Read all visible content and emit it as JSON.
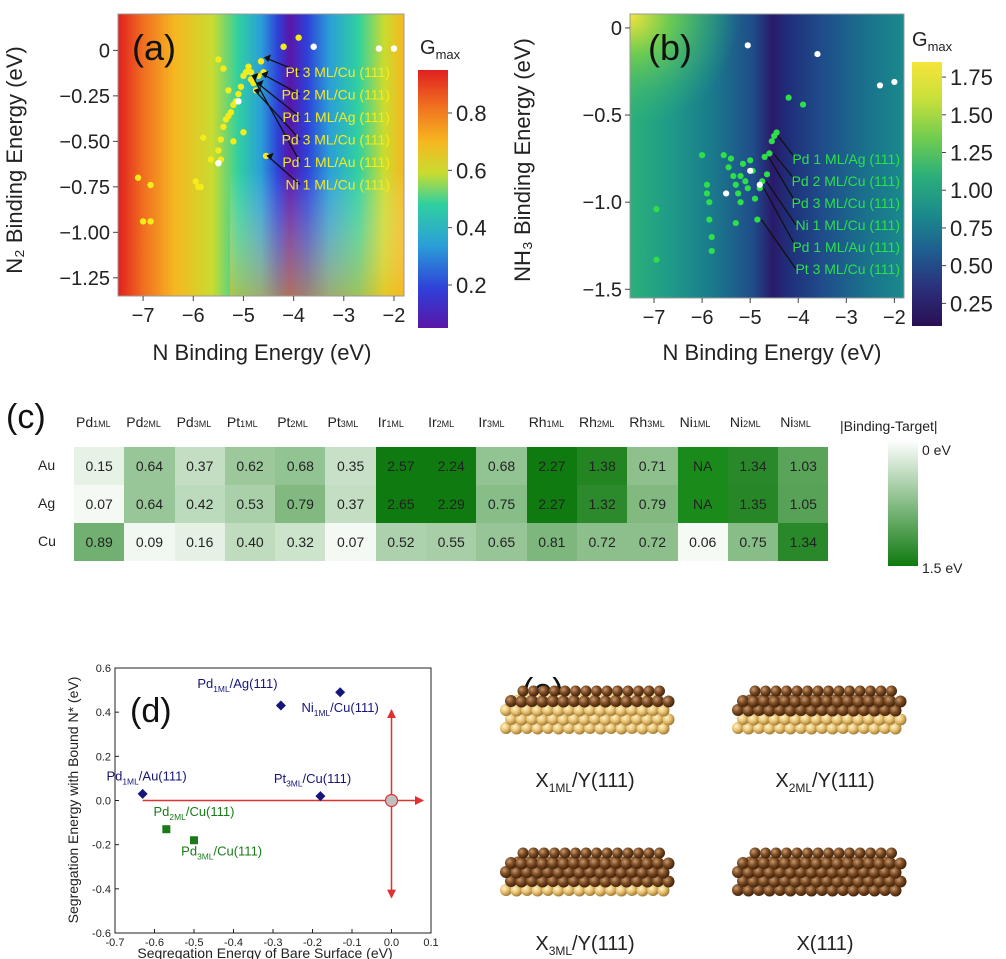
{
  "panel_a": {
    "label": "(a)",
    "xlabel": "N Binding Energy (eV)",
    "ylabel": "N₂ Binding Energy (eV)",
    "colorbar_title": "Gmax",
    "colorbar_ticks": [
      "0.8",
      "0.6",
      "0.4",
      "0.2"
    ],
    "annotations": [
      "Pt 3 ML/Cu (111)",
      "Pd 2 ML/Cu (111)",
      "Pd 1 ML/Ag (111)",
      "Pd 3 ML/Cu (111)",
      "Pd 1 ML/Au (111)",
      "Ni 1 ML/Cu (111)"
    ]
  },
  "panel_b": {
    "label": "(b)",
    "xlabel": "N Binding Energy (eV)",
    "ylabel": "NH₃ Binding Energy (eV)",
    "colorbar_title": "Gmax",
    "colorbar_ticks": [
      "1.75",
      "1.50",
      "1.25",
      "1.00",
      "0.75",
      "0.50",
      "0.25"
    ],
    "annotations": [
      "Pd 1 ML/Ag (111)",
      "Pd 2 ML/Cu (111)",
      "Pd 3 ML/Cu (111)",
      "Ni 1 ML/Cu (111)",
      "Pd 1 ML/Au (111)",
      "Pt 3 ML/Cu (111)"
    ]
  },
  "panel_c": {
    "label": "(c)",
    "legend_title": "|Binding-Target|",
    "legend_top": "0 eV",
    "legend_bottom": "1.5 eV"
  },
  "panel_d": {
    "label": "(d)",
    "xlabel": "Segregation Energy of Bare Surface (eV)",
    "ylabel": "Segregation Energy with Bound N* (eV)"
  },
  "panel_e": {
    "label": "(e)",
    "captions": [
      "X1ML/Y(111)",
      "X2ML/Y(111)",
      "X3ML/Y(111)",
      "X(111)"
    ]
  },
  "chart_data": [
    {
      "type": "heatmap",
      "panel": "a",
      "xlim": [
        -7.5,
        -1.8
      ],
      "ylim": [
        -1.35,
        0.2
      ],
      "xticks": [
        -7,
        -6,
        -5,
        -4,
        -3,
        -2
      ],
      "yticks": [
        0,
        -0.25,
        -0.5,
        -0.75,
        -1.0,
        -1.25
      ],
      "ytick_labels": [
        "0",
        "−0.25",
        "−0.50",
        "−0.75",
        "−1.00",
        "−1.25"
      ],
      "xtick_labels": [
        "−7",
        "−6",
        "−5",
        "−4",
        "−3",
        "−2"
      ],
      "colorbar_range": [
        0.05,
        0.95
      ],
      "colormap": [
        "#5a16a8",
        "#2f3fd8",
        "#2a9fd8",
        "#30d0a0",
        "#c8dc30",
        "#f6b820",
        "#f07020",
        "#e02020"
      ],
      "yellow_points": [
        [
          -7.1,
          -0.7
        ],
        [
          -7.0,
          -0.94
        ],
        [
          -6.85,
          -0.74
        ],
        [
          -6.85,
          -0.94
        ],
        [
          -5.95,
          -0.72
        ],
        [
          -5.9,
          -0.75
        ],
        [
          -5.85,
          -0.75
        ],
        [
          -5.8,
          -0.48
        ],
        [
          -5.65,
          -0.6
        ],
        [
          -5.5,
          -0.55
        ],
        [
          -5.45,
          -0.49
        ],
        [
          -5.4,
          -0.42
        ],
        [
          -5.35,
          -0.38
        ],
        [
          -5.3,
          -0.36
        ],
        [
          -5.25,
          -0.34
        ],
        [
          -5.2,
          -0.3
        ],
        [
          -5.15,
          -0.28
        ],
        [
          -5.1,
          -0.24
        ],
        [
          -5.05,
          -0.2
        ],
        [
          -5.0,
          -0.14
        ],
        [
          -4.95,
          -0.12
        ],
        [
          -4.9,
          -0.09
        ],
        [
          -4.85,
          -0.12
        ],
        [
          -4.85,
          -0.16
        ],
        [
          -4.8,
          -0.18
        ],
        [
          -4.75,
          -0.22
        ],
        [
          -4.7,
          -0.14
        ],
        [
          -4.65,
          -0.06
        ],
        [
          -4.6,
          -0.12
        ],
        [
          -4.55,
          -0.58
        ],
        [
          -5.4,
          -0.1
        ],
        [
          -5.5,
          -0.05
        ],
        [
          -5.3,
          -0.22
        ],
        [
          -5.2,
          -0.5
        ],
        [
          -5.45,
          -0.6
        ],
        [
          -5.0,
          -0.45
        ],
        [
          -4.2,
          0.02
        ],
        [
          -3.9,
          0.07
        ]
      ],
      "white_points": [
        [
          -3.6,
          0.02
        ],
        [
          -2.3,
          0.01
        ],
        [
          -2.0,
          0.01
        ],
        [
          -5.5,
          -0.62
        ],
        [
          -5.1,
          -0.28
        ]
      ]
    },
    {
      "type": "heatmap",
      "panel": "b",
      "xlim": [
        -7.5,
        -1.8
      ],
      "ylim": [
        -1.55,
        0.08
      ],
      "xticks": [
        -7,
        -6,
        -5,
        -4,
        -3,
        -2
      ],
      "yticks": [
        0,
        -0.5,
        -1.0,
        -1.5
      ],
      "ytick_labels": [
        "0",
        "−0.5",
        "−1.0",
        "−1.5"
      ],
      "xtick_labels": [
        "−7",
        "−6",
        "−5",
        "−4",
        "−3",
        "−2"
      ],
      "colorbar_range": [
        0.1,
        1.85
      ],
      "colormap": [
        "#2a0f55",
        "#2b2f7a",
        "#1f5c8f",
        "#1a8a8c",
        "#2cb07a",
        "#70cc50",
        "#c8e03a",
        "#f6e43a"
      ],
      "green_points": [
        [
          -6.95,
          -1.04
        ],
        [
          -6.95,
          -1.33
        ],
        [
          -6.0,
          -0.73
        ],
        [
          -5.9,
          -0.9
        ],
        [
          -5.9,
          -0.95
        ],
        [
          -5.85,
          -1.0
        ],
        [
          -5.85,
          -1.1
        ],
        [
          -5.8,
          -1.2
        ],
        [
          -5.8,
          -1.28
        ],
        [
          -5.55,
          -0.73
        ],
        [
          -5.45,
          -0.8
        ],
        [
          -5.4,
          -0.75
        ],
        [
          -5.35,
          -0.85
        ],
        [
          -5.3,
          -0.9
        ],
        [
          -5.25,
          -0.95
        ],
        [
          -5.2,
          -1.0
        ],
        [
          -5.15,
          -0.78
        ],
        [
          -5.1,
          -0.88
        ],
        [
          -5.05,
          -0.92
        ],
        [
          -5.0,
          -0.76
        ],
        [
          -4.95,
          -0.82
        ],
        [
          -4.9,
          -0.98
        ],
        [
          -4.85,
          -1.1
        ],
        [
          -4.8,
          -0.92
        ],
        [
          -4.75,
          -0.88
        ],
        [
          -4.7,
          -0.74
        ],
        [
          -4.6,
          -0.72
        ],
        [
          -4.55,
          -0.65
        ],
        [
          -4.5,
          -0.62
        ],
        [
          -4.45,
          -0.6
        ],
        [
          -4.2,
          -0.4
        ],
        [
          -3.9,
          -0.44
        ],
        [
          -5.3,
          -1.12
        ],
        [
          -5.2,
          -0.85
        ],
        [
          -4.65,
          -0.84
        ]
      ],
      "white_points": [
        [
          -5.05,
          -0.1
        ],
        [
          -3.6,
          -0.15
        ],
        [
          -2.3,
          -0.33
        ],
        [
          -2.0,
          -0.31
        ],
        [
          -5.0,
          -0.82
        ],
        [
          -4.8,
          -0.9
        ],
        [
          -5.5,
          -0.95
        ]
      ]
    },
    {
      "type": "table",
      "panel": "c",
      "columns": [
        "Pd1ML",
        "Pd2ML",
        "Pd3ML",
        "Pt1ML",
        "Pt2ML",
        "Pt3ML",
        "Ir1ML",
        "Ir2ML",
        "Ir3ML",
        "Rh1ML",
        "Rh2ML",
        "Rh3ML",
        "Ni1ML",
        "Ni2ML",
        "Ni3ML"
      ],
      "rows": [
        "Au",
        "Ag",
        "Cu"
      ],
      "values": [
        [
          "0.15",
          "0.64",
          "0.37",
          "0.62",
          "0.68",
          "0.35",
          "2.57",
          "2.24",
          "0.68",
          "2.27",
          "1.38",
          "0.71",
          "NA",
          "1.34",
          "1.03"
        ],
        [
          "0.07",
          "0.64",
          "0.42",
          "0.53",
          "0.79",
          "0.37",
          "2.65",
          "2.29",
          "0.75",
          "2.27",
          "1.32",
          "0.79",
          "NA",
          "1.35",
          "1.05"
        ],
        [
          "0.89",
          "0.09",
          "0.16",
          "0.40",
          "0.32",
          "0.07",
          "0.52",
          "0.55",
          "0.65",
          "0.81",
          "0.72",
          "0.72",
          "0.06",
          "0.75",
          "1.34"
        ]
      ],
      "color_range": [
        0,
        1.5
      ]
    },
    {
      "type": "scatter",
      "panel": "d",
      "xlim": [
        -0.7,
        0.1
      ],
      "ylim": [
        -0.6,
        0.6
      ],
      "xticks": [
        -0.7,
        -0.6,
        -0.5,
        -0.4,
        -0.3,
        -0.2,
        -0.1,
        0.0,
        0.1
      ],
      "xtick_labels": [
        "-0.7",
        "-0.6",
        "-0.5",
        "-0.4",
        "-0.3",
        "-0.2",
        "-0.1",
        "0.0",
        "0.1"
      ],
      "yticks": [
        0.6,
        0.4,
        0.2,
        0.0,
        -0.2,
        -0.4,
        -0.6
      ],
      "ytick_labels": [
        "0.6",
        "0.4",
        "0.2",
        "0.0",
        "-0.2",
        "-0.4",
        "-0.6"
      ],
      "series": [
        {
          "color": "#15157a",
          "marker": "diamond",
          "points": [
            {
              "x": -0.63,
              "y": 0.03,
              "label": "Pd1ML/Au(111)",
              "lx": -0.62,
              "ly": 0.09
            },
            {
              "x": -0.28,
              "y": 0.43,
              "label": "Pd1ML/Ag(111)",
              "lx": -0.39,
              "ly": 0.51
            },
            {
              "x": -0.13,
              "y": 0.49,
              "label": "Ni1ML/Cu(111)",
              "lx": -0.13,
              "ly": 0.4
            },
            {
              "x": -0.18,
              "y": 0.02,
              "label": "Pt3ML/Cu(111)",
              "lx": -0.2,
              "ly": 0.08
            }
          ]
        },
        {
          "color": "#1a7a1a",
          "marker": "square",
          "points": [
            {
              "x": -0.57,
              "y": -0.13,
              "label": "Pd2ML/Cu(111)",
              "lx": -0.5,
              "ly": -0.07
            },
            {
              "x": -0.5,
              "y": -0.18,
              "label": "Pd3ML/Cu(111)",
              "lx": -0.43,
              "ly": -0.25
            }
          ]
        }
      ]
    }
  ]
}
